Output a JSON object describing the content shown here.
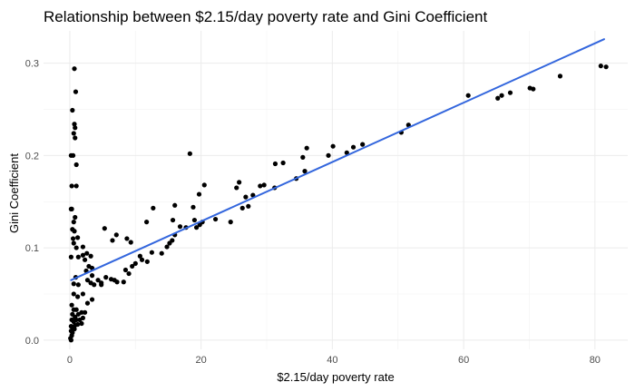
{
  "chart_data": {
    "type": "scatter",
    "title": "Relationship between $2.15/day poverty rate and Gini Coefficient",
    "xlabel": "$2.15/day poverty rate",
    "ylabel": "Gini Coefficient",
    "xlim": [
      -4,
      85
    ],
    "ylim": [
      -0.01,
      0.335
    ],
    "xticks": [
      0,
      20,
      40,
      60,
      80
    ],
    "yticks": [
      0.0,
      0.1,
      0.2,
      0.3
    ],
    "xtick_labels": [
      "0",
      "20",
      "40",
      "60",
      "80"
    ],
    "ytick_labels": [
      "0.0",
      "0.1",
      "0.2",
      "0.3"
    ],
    "grid": true,
    "point_color": "#000000",
    "trend_color": "#3366dd",
    "trend_line": {
      "x": [
        0.2,
        81.4
      ],
      "y": [
        0.065,
        0.326
      ]
    },
    "points": [
      [
        0.7,
        0.294
      ],
      [
        0.4,
        0.249
      ],
      [
        0.9,
        0.269
      ],
      [
        0.7,
        0.234
      ],
      [
        0.8,
        0.23
      ],
      [
        0.6,
        0.224
      ],
      [
        0.8,
        0.219
      ],
      [
        0.2,
        0.2
      ],
      [
        0.5,
        0.2
      ],
      [
        1.0,
        0.19
      ],
      [
        0.3,
        0.167
      ],
      [
        1.0,
        0.167
      ],
      [
        0.2,
        0.142
      ],
      [
        0.3,
        0.142
      ],
      [
        0.8,
        0.133
      ],
      [
        0.6,
        0.128
      ],
      [
        0.4,
        0.12
      ],
      [
        0.7,
        0.118
      ],
      [
        0.5,
        0.11
      ],
      [
        1.2,
        0.111
      ],
      [
        2.0,
        0.101
      ],
      [
        0.6,
        0.105
      ],
      [
        1.0,
        0.1
      ],
      [
        0.2,
        0.09
      ],
      [
        1.3,
        0.09
      ],
      [
        2.0,
        0.092
      ],
      [
        2.3,
        0.087
      ],
      [
        2.6,
        0.094
      ],
      [
        3.2,
        0.091
      ],
      [
        2.9,
        0.08
      ],
      [
        2.5,
        0.075
      ],
      [
        3.4,
        0.078
      ],
      [
        3.2,
        0.062
      ],
      [
        2.7,
        0.065
      ],
      [
        4.3,
        0.065
      ],
      [
        4.8,
        0.062
      ],
      [
        3.4,
        0.07
      ],
      [
        0.6,
        0.061
      ],
      [
        0.9,
        0.068
      ],
      [
        1.3,
        0.06
      ],
      [
        0.6,
        0.05
      ],
      [
        1.2,
        0.047
      ],
      [
        2.0,
        0.05
      ],
      [
        0.3,
        0.038
      ],
      [
        0.6,
        0.033
      ],
      [
        1.0,
        0.033
      ],
      [
        0.4,
        0.028
      ],
      [
        0.8,
        0.025
      ],
      [
        1.3,
        0.028
      ],
      [
        1.8,
        0.03
      ],
      [
        2.3,
        0.03
      ],
      [
        0.3,
        0.022
      ],
      [
        0.6,
        0.02
      ],
      [
        1.0,
        0.022
      ],
      [
        1.5,
        0.022
      ],
      [
        2.0,
        0.024
      ],
      [
        0.2,
        0.015
      ],
      [
        0.5,
        0.013
      ],
      [
        0.8,
        0.016
      ],
      [
        1.2,
        0.017
      ],
      [
        1.8,
        0.018
      ],
      [
        0.2,
        0.01
      ],
      [
        0.4,
        0.008
      ],
      [
        0.7,
        0.012
      ],
      [
        0.3,
        0.005
      ],
      [
        0.1,
        0.002
      ],
      [
        0.2,
        0.0
      ],
      [
        2.7,
        0.04
      ],
      [
        3.4,
        0.044
      ],
      [
        3.7,
        0.06
      ],
      [
        4.8,
        0.06
      ],
      [
        5.5,
        0.068
      ],
      [
        6.3,
        0.066
      ],
      [
        6.8,
        0.065
      ],
      [
        7.2,
        0.063
      ],
      [
        8.2,
        0.063
      ],
      [
        8.5,
        0.076
      ],
      [
        9.0,
        0.072
      ],
      [
        9.5,
        0.08
      ],
      [
        10.0,
        0.083
      ],
      [
        10.7,
        0.091
      ],
      [
        11.0,
        0.087
      ],
      [
        11.8,
        0.085
      ],
      [
        12.5,
        0.095
      ],
      [
        5.3,
        0.121
      ],
      [
        6.5,
        0.108
      ],
      [
        7.1,
        0.114
      ],
      [
        8.7,
        0.11
      ],
      [
        9.3,
        0.106
      ],
      [
        11.7,
        0.128
      ],
      [
        12.7,
        0.143
      ],
      [
        14.0,
        0.094
      ],
      [
        14.8,
        0.101
      ],
      [
        15.2,
        0.105
      ],
      [
        15.6,
        0.108
      ],
      [
        16.0,
        0.114
      ],
      [
        15.7,
        0.13
      ],
      [
        16.0,
        0.146
      ],
      [
        16.8,
        0.123
      ],
      [
        17.7,
        0.122
      ],
      [
        18.3,
        0.202
      ],
      [
        18.8,
        0.144
      ],
      [
        19.0,
        0.13
      ],
      [
        19.3,
        0.122
      ],
      [
        19.8,
        0.125
      ],
      [
        20.2,
        0.128
      ],
      [
        19.7,
        0.158
      ],
      [
        20.5,
        0.168
      ],
      [
        22.2,
        0.131
      ],
      [
        24.5,
        0.128
      ],
      [
        25.4,
        0.165
      ],
      [
        25.8,
        0.171
      ],
      [
        26.3,
        0.143
      ],
      [
        26.8,
        0.155
      ],
      [
        27.2,
        0.145
      ],
      [
        27.9,
        0.157
      ],
      [
        29.0,
        0.167
      ],
      [
        29.6,
        0.168
      ],
      [
        31.2,
        0.165
      ],
      [
        31.3,
        0.191
      ],
      [
        32.5,
        0.192
      ],
      [
        34.5,
        0.175
      ],
      [
        35.5,
        0.198
      ],
      [
        35.8,
        0.183
      ],
      [
        36.1,
        0.208
      ],
      [
        39.4,
        0.2
      ],
      [
        40.1,
        0.21
      ],
      [
        42.2,
        0.203
      ],
      [
        43.2,
        0.209
      ],
      [
        44.6,
        0.212
      ],
      [
        50.5,
        0.225
      ],
      [
        51.6,
        0.233
      ],
      [
        60.7,
        0.265
      ],
      [
        65.2,
        0.262
      ],
      [
        65.8,
        0.265
      ],
      [
        67.1,
        0.268
      ],
      [
        70.1,
        0.273
      ],
      [
        70.6,
        0.272
      ],
      [
        74.7,
        0.286
      ],
      [
        80.9,
        0.297
      ],
      [
        81.7,
        0.296
      ]
    ]
  }
}
